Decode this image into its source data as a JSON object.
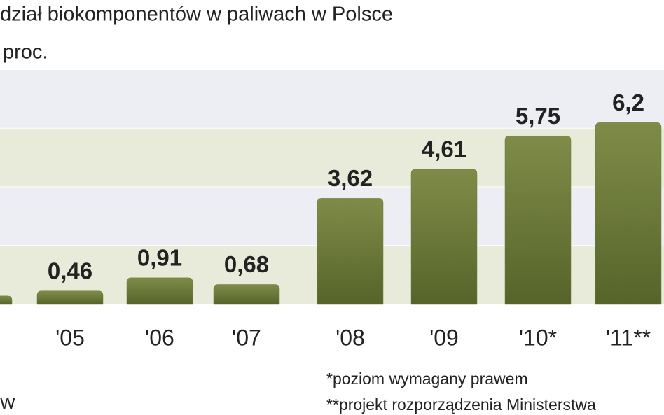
{
  "chart_data": {
    "type": "bar",
    "title": "dział biokomponentów w paliwach w Polsce",
    "subtitle": "proc.",
    "categories": [
      null,
      "'05",
      "'06",
      "'07",
      "'08",
      "'09",
      "'10*",
      "'11**"
    ],
    "values": [
      0.29,
      0.46,
      0.91,
      0.68,
      3.62,
      4.61,
      5.75,
      6.2
    ],
    "value_labels": [
      null,
      "0,46",
      "0,91",
      "0,68",
      "3,62",
      "4,61",
      "5,75",
      "6,2"
    ],
    "color": "#6b7a3a",
    "ylim": [
      0,
      8
    ],
    "notes": [
      "*poziom wymagany prawem",
      "**projekt rozporządzenia Ministerstwa"
    ],
    "source": "W"
  }
}
